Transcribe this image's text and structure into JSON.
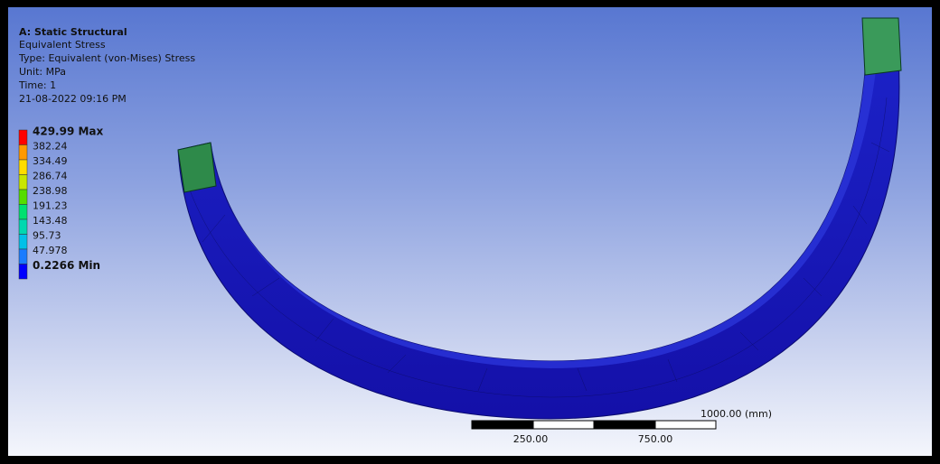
{
  "header": {
    "title": "A: Static Structural",
    "lines": [
      "Equivalent Stress",
      "Type: Equivalent (von-Mises) Stress",
      "Unit: MPa",
      "Time: 1",
      "21-08-2022 09:16 PM"
    ]
  },
  "legend": {
    "entries": [
      "429.99 Max",
      "382.24",
      "334.49",
      "286.74",
      "238.98",
      "191.23",
      "143.48",
      "95.73",
      "47.978",
      "0.2266 Min"
    ]
  },
  "scale_bar": {
    "labels": [
      "250.00",
      "750.00",
      "1000.00 (mm)"
    ]
  }
}
